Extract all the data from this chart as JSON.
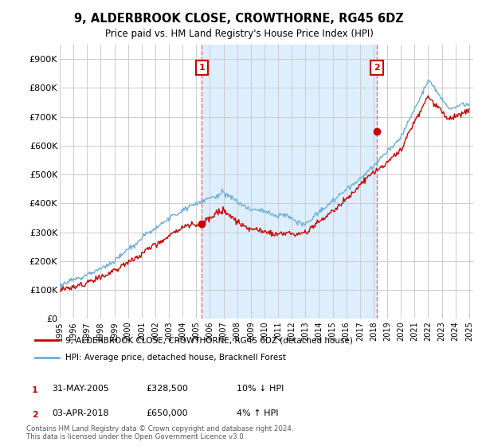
{
  "title": "9, ALDERBROOK CLOSE, CROWTHORNE, RG45 6DZ",
  "subtitle": "Price paid vs. HM Land Registry's House Price Index (HPI)",
  "ylabel_ticks": [
    "£0",
    "£100K",
    "£200K",
    "£300K",
    "£400K",
    "£500K",
    "£600K",
    "£700K",
    "£800K",
    "£900K"
  ],
  "y_values": [
    0,
    100000,
    200000,
    300000,
    400000,
    500000,
    600000,
    700000,
    800000,
    900000
  ],
  "ylim": [
    0,
    950000
  ],
  "hpi_color": "#6baed6",
  "price_color": "#cc0000",
  "vline_color": "#ff6666",
  "shade_color": "#ddeeff",
  "marker1_year": 2005.42,
  "marker1_price": 328500,
  "marker1_label": "1",
  "marker1_date": "31-MAY-2005",
  "marker1_pct": "10% ↓ HPI",
  "marker2_year": 2018.25,
  "marker2_price": 650000,
  "marker2_label": "2",
  "marker2_date": "03-APR-2018",
  "marker2_pct": "4% ↑ HPI",
  "legend_line1": "9, ALDERBROOK CLOSE, CROWTHORNE, RG45 6DZ (detached house)",
  "legend_line2": "HPI: Average price, detached house, Bracknell Forest",
  "footnote": "Contains HM Land Registry data © Crown copyright and database right 2024.\nThis data is licensed under the Open Government Licence v3.0.",
  "background_color": "#ffffff",
  "grid_color": "#cccccc"
}
